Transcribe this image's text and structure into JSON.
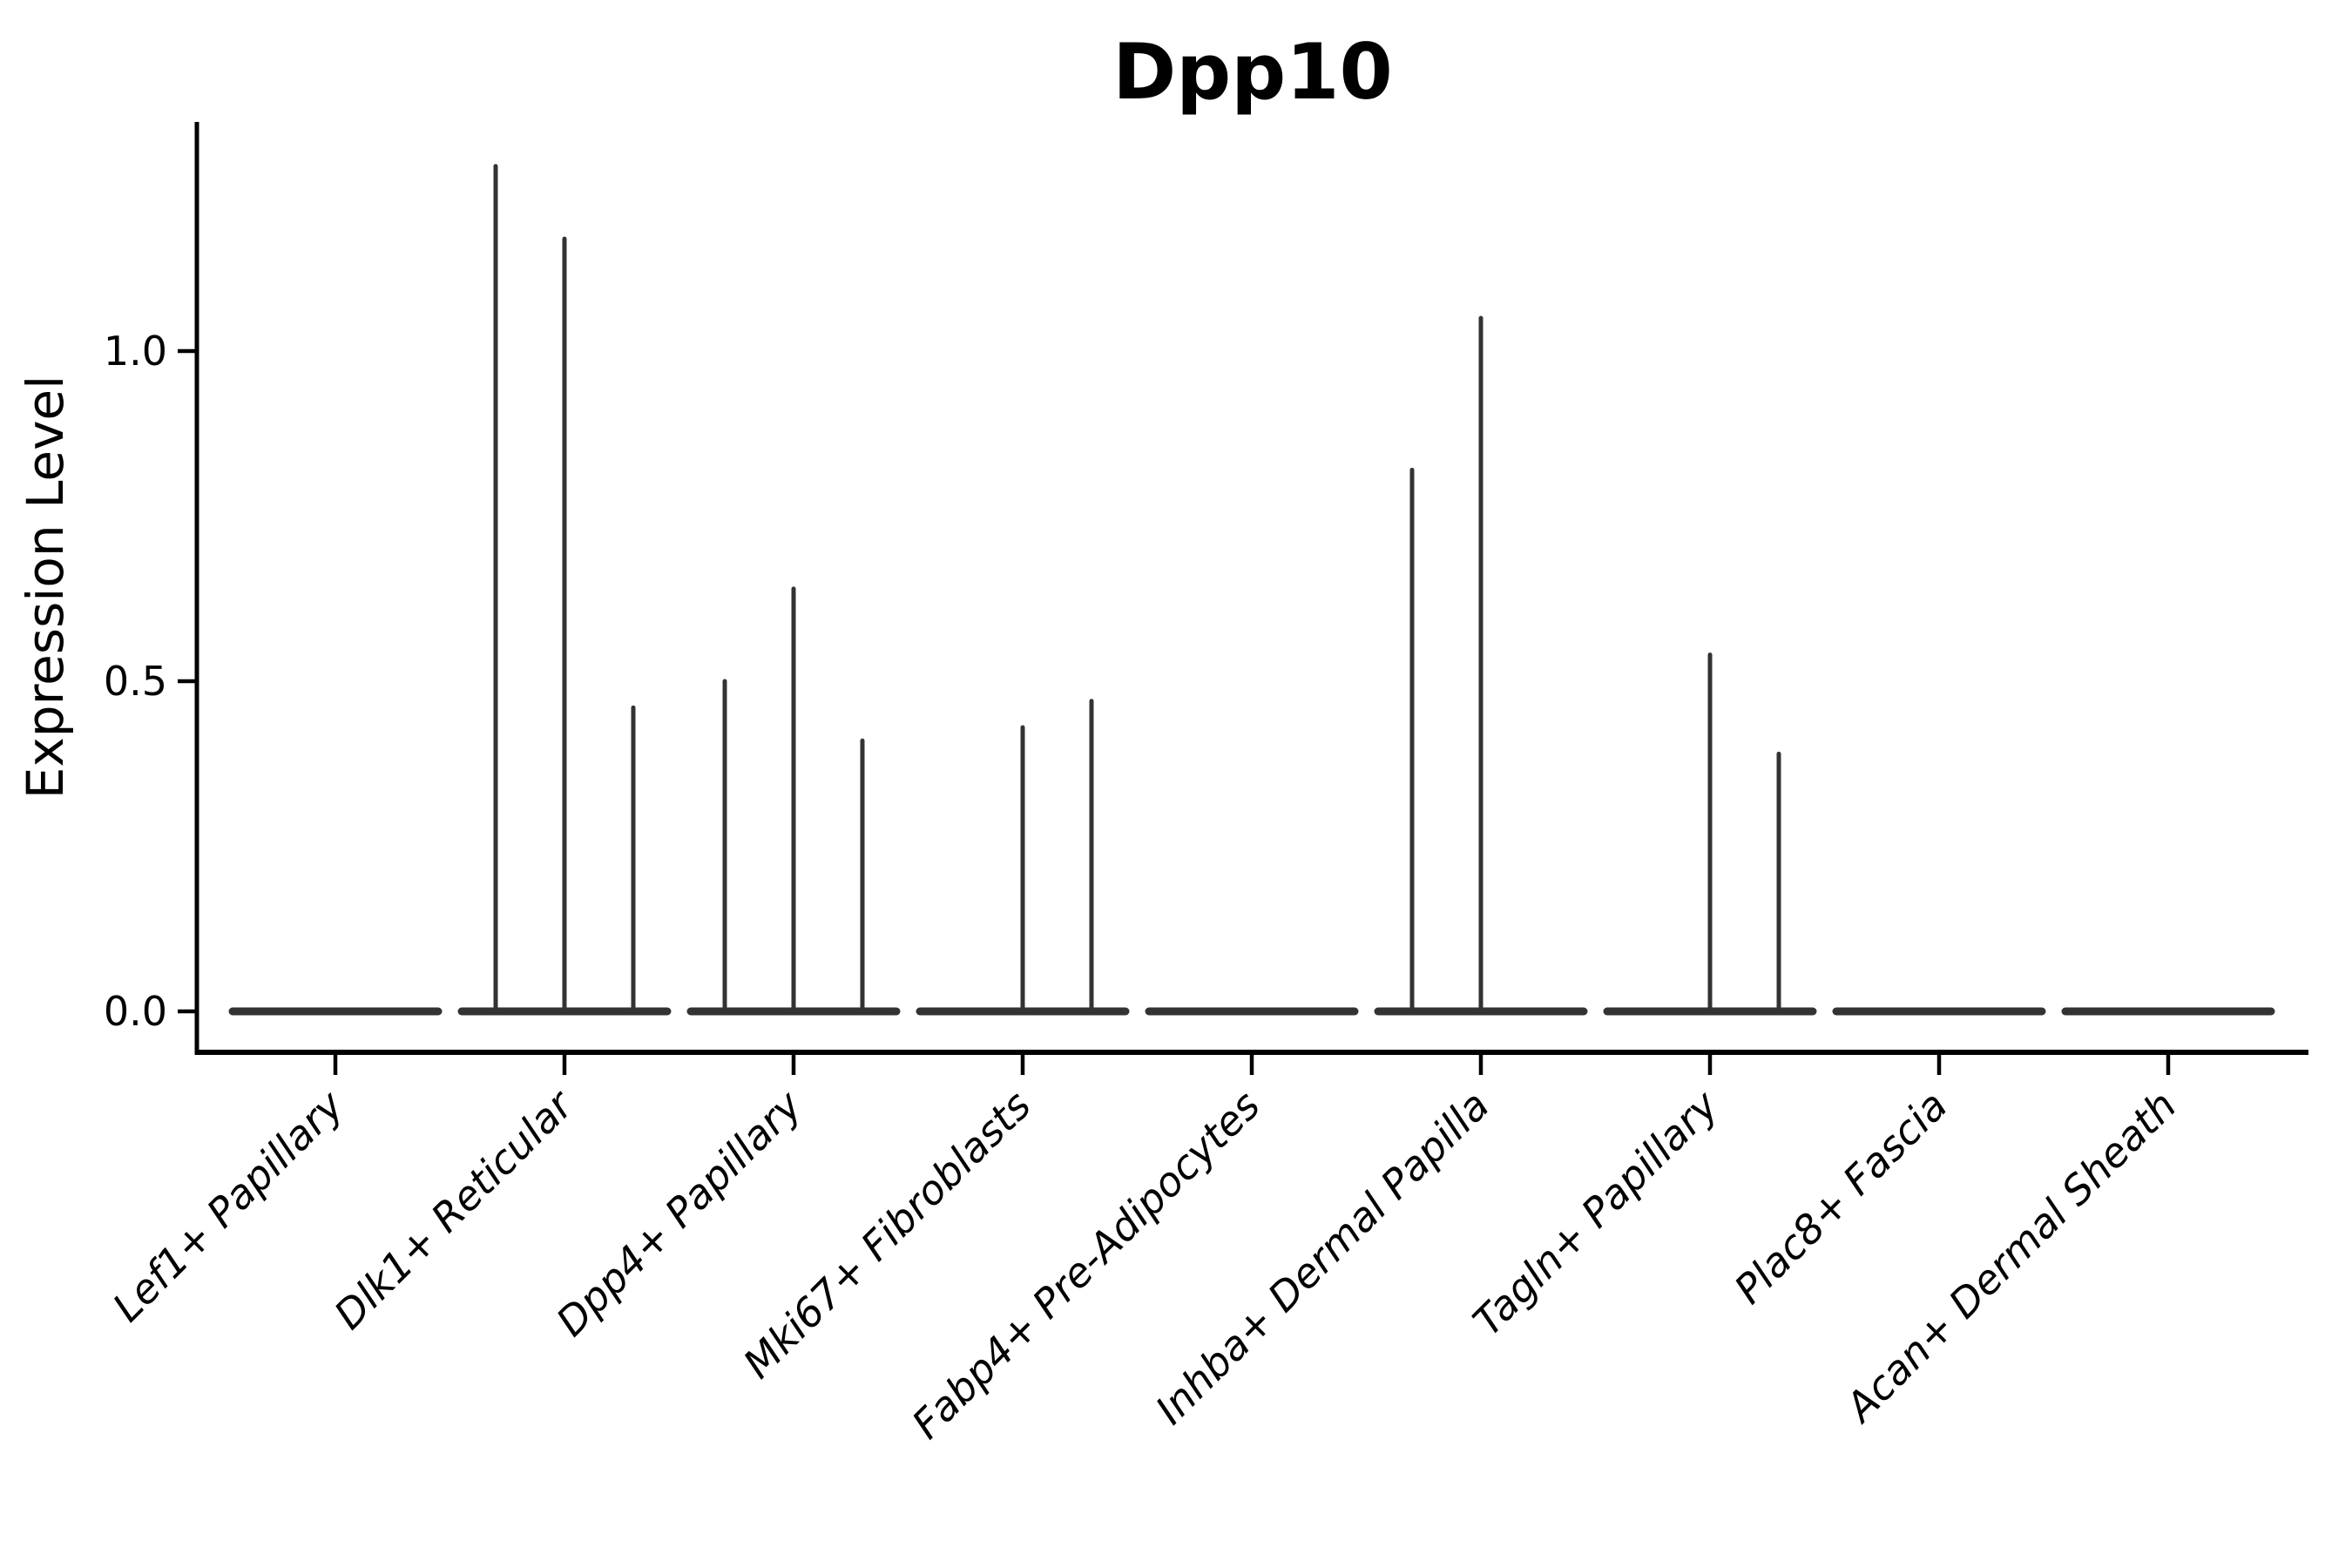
{
  "chart_data": {
    "type": "violin",
    "title": "Dpp10",
    "ylabel": "Expression Level",
    "xlabel": "",
    "yticks": [
      0.0,
      0.5,
      1.0
    ],
    "ytick_labels": [
      "0.0",
      "0.5",
      "1.0"
    ],
    "ylim": [
      -0.06,
      1.35
    ],
    "grid": false,
    "legend": "none",
    "baseline_value": 0.0,
    "categories": [
      "Lef1+ Papillary",
      "Dlk1+ Reticular",
      "Dpp4+ Papillary",
      "Mki67+ Fibroblasts",
      "Fabp4+ Pre-Adipocytes",
      "Inhba+ Dermal Papilla",
      "Tagln+ Papillary",
      "Plac8+ Fascia",
      "Acan+ Dermal Sheath"
    ],
    "series": [
      {
        "name": "Lef1+ Papillary",
        "sub_violin_peaks": [
          0,
          0,
          0
        ]
      },
      {
        "name": "Dlk1+ Reticular",
        "sub_violin_peaks": [
          1.28,
          1.17,
          0.46
        ]
      },
      {
        "name": "Dpp4+ Papillary",
        "sub_violin_peaks": [
          0.5,
          0.64,
          0.41
        ]
      },
      {
        "name": "Mki67+ Fibroblasts",
        "sub_violin_peaks": [
          0,
          0.43,
          0.47
        ]
      },
      {
        "name": "Fabp4+ Pre-Adipocytes",
        "sub_violin_peaks": [
          0,
          0,
          0
        ]
      },
      {
        "name": "Inhba+ Dermal Papilla",
        "sub_violin_peaks": [
          0.82,
          1.05,
          0
        ]
      },
      {
        "name": "Tagln+ Papillary",
        "sub_violin_peaks": [
          0,
          0.54,
          0.39
        ]
      },
      {
        "name": "Plac8+ Fascia",
        "sub_violin_peaks": [
          0,
          0,
          0
        ]
      },
      {
        "name": "Acan+ Dermal Sheath",
        "sub_violin_peaks": [
          0,
          0,
          0
        ]
      }
    ]
  },
  "colors": {
    "violin": "#333333",
    "axis": "#000000",
    "text": "#000000",
    "background": "#ffffff"
  }
}
